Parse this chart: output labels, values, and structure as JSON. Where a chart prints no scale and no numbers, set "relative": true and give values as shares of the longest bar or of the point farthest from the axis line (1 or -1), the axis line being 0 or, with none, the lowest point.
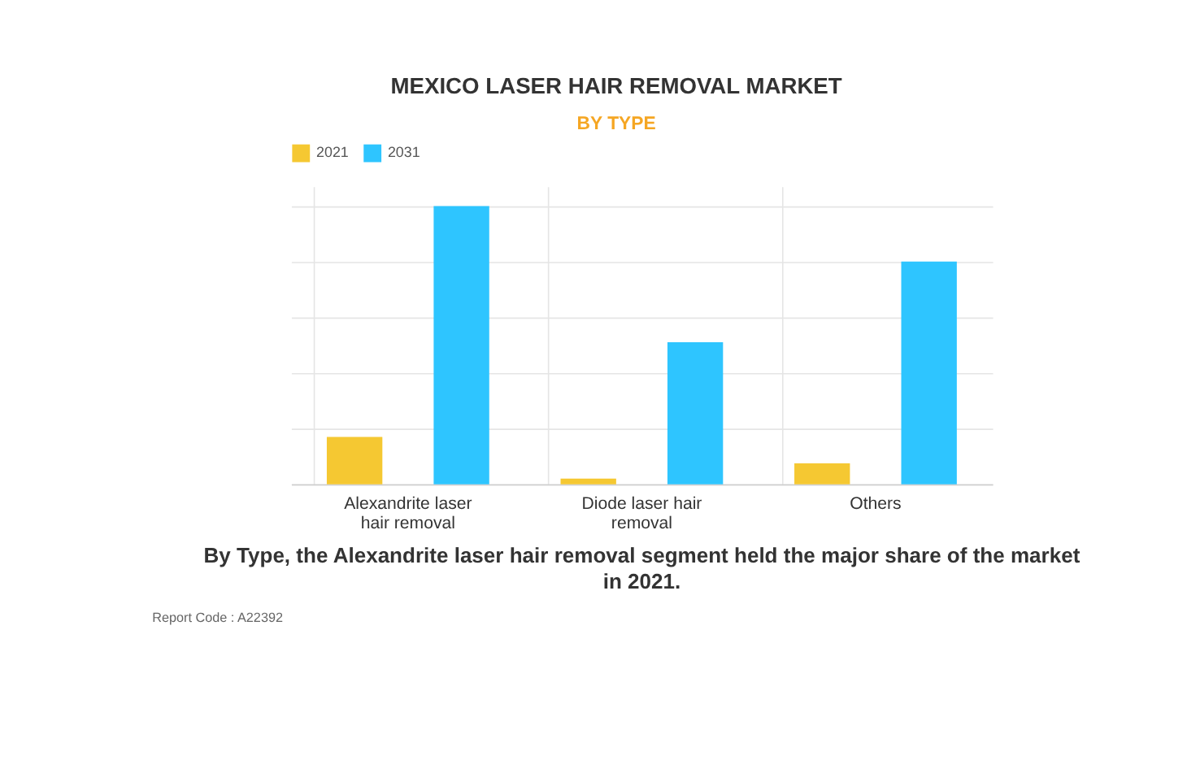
{
  "chart_data": {
    "type": "bar",
    "title": "MEXICO LASER HAIR REMOVAL MARKET",
    "subtitle": "BY TYPE",
    "categories": [
      "Alexandrite laser hair removal",
      "Diode laser hair removal",
      "Others"
    ],
    "series": [
      {
        "name": "2021",
        "color": "#f5c832",
        "values": [
          0.17,
          0.02,
          0.075
        ]
      },
      {
        "name": "2031",
        "color": "#2ec5ff",
        "values": [
          1,
          0.51,
          0.8
        ]
      }
    ],
    "relative": true,
    "grid": true,
    "legend": "top",
    "annotations": [
      "By Type, the Alexandrite laser hair removal segment held the major share of the market in 2021.",
      "Report Code : A22392"
    ]
  }
}
